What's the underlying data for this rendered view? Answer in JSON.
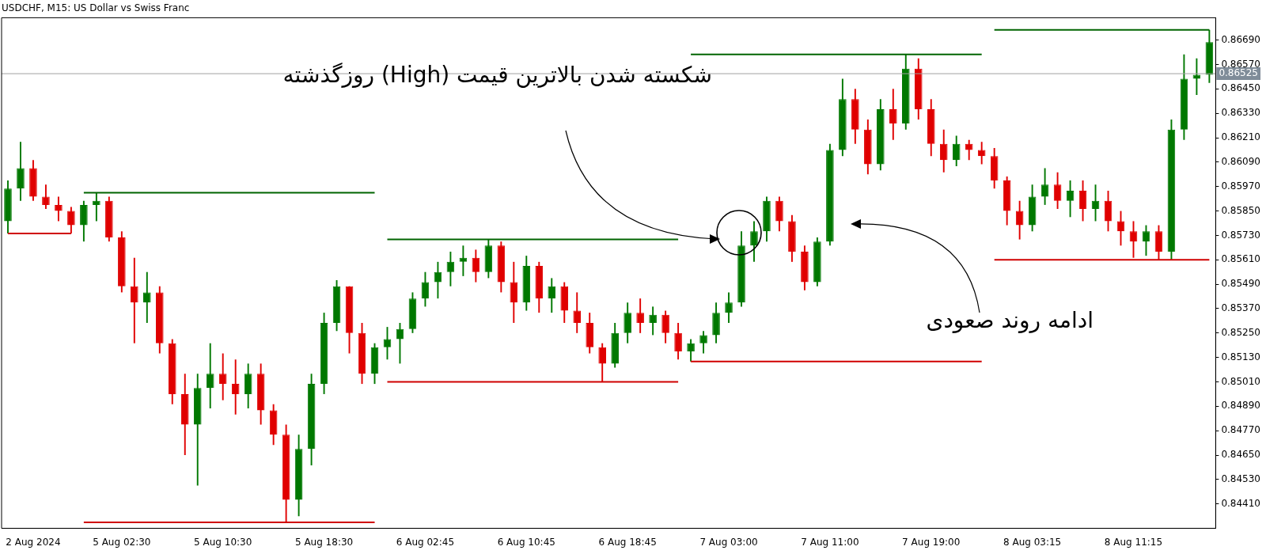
{
  "chart_data": {
    "type": "candlestick",
    "title": "USDCHF, M15: US Dollar vs Swiss Franc",
    "categories": [
      null,
      null,
      "2 Aug 2024",
      null,
      null,
      null,
      null,
      null,
      null,
      "5 Aug 02:30",
      null,
      null,
      null,
      null,
      null,
      null,
      null,
      "5 Aug 10:30",
      null,
      null,
      null,
      null,
      null,
      null,
      null,
      "5 Aug 18:30",
      null,
      null,
      null,
      null,
      null,
      null,
      null,
      "6 Aug 02:45",
      null,
      null,
      null,
      null,
      null,
      null,
      null,
      "6 Aug 10:45",
      null,
      null,
      null,
      null,
      null,
      null,
      null,
      "6 Aug 18:45",
      null,
      null,
      null,
      null,
      null,
      null,
      null,
      "7 Aug 03:00",
      null,
      null,
      null,
      null,
      null,
      null,
      null,
      "7 Aug 11:00",
      null,
      null,
      null,
      null,
      null,
      null,
      null,
      "7 Aug 19:00",
      null,
      null,
      null,
      null,
      null,
      null,
      null,
      "8 Aug 03:15",
      null,
      null,
      null,
      null,
      null,
      null,
      null,
      "8 Aug 11:15",
      null,
      null,
      null,
      null,
      null,
      null
    ],
    "series": [
      {
        "ohlc": [
          [
            0.858,
            0.86,
            0.8574,
            0.8596
          ],
          [
            0.8596,
            0.8619,
            0.859,
            0.8606
          ],
          [
            0.8606,
            0.861,
            0.859,
            0.8592
          ],
          [
            0.8592,
            0.8598,
            0.8586,
            0.8588
          ],
          [
            0.8588,
            0.8592,
            0.858,
            0.8585
          ],
          [
            0.8585,
            0.8587,
            0.8574,
            0.8578
          ],
          [
            0.8578,
            0.859,
            0.857,
            0.8588
          ],
          [
            0.8588,
            0.8594,
            0.858,
            0.859
          ],
          [
            0.859,
            0.8592,
            0.857,
            0.8572
          ],
          [
            0.8572,
            0.8575,
            0.8545,
            0.8548
          ],
          [
            0.8548,
            0.8562,
            0.852,
            0.854
          ],
          [
            0.854,
            0.8555,
            0.853,
            0.8545
          ],
          [
            0.8545,
            0.8548,
            0.8515,
            0.852
          ],
          [
            0.852,
            0.8522,
            0.849,
            0.8495
          ],
          [
            0.8495,
            0.8505,
            0.8465,
            0.848
          ],
          [
            0.848,
            0.8505,
            0.845,
            0.8498
          ],
          [
            0.8498,
            0.852,
            0.8488,
            0.8505
          ],
          [
            0.8505,
            0.8515,
            0.8492,
            0.85
          ],
          [
            0.85,
            0.8512,
            0.8485,
            0.8495
          ],
          [
            0.8495,
            0.851,
            0.8488,
            0.8505
          ],
          [
            0.8505,
            0.851,
            0.848,
            0.8487
          ],
          [
            0.8487,
            0.849,
            0.847,
            0.8475
          ],
          [
            0.8475,
            0.848,
            0.8432,
            0.8443
          ],
          [
            0.8443,
            0.8475,
            0.8435,
            0.8468
          ],
          [
            0.8468,
            0.8505,
            0.846,
            0.85
          ],
          [
            0.85,
            0.8535,
            0.8495,
            0.853
          ],
          [
            0.853,
            0.8551,
            0.8526,
            0.8548
          ],
          [
            0.8548,
            0.8548,
            0.8515,
            0.8525
          ],
          [
            0.8525,
            0.853,
            0.85,
            0.8505
          ],
          [
            0.8505,
            0.852,
            0.85,
            0.8518
          ],
          [
            0.8518,
            0.8528,
            0.8512,
            0.8522
          ],
          [
            0.8522,
            0.853,
            0.851,
            0.8527
          ],
          [
            0.8527,
            0.8545,
            0.8525,
            0.8542
          ],
          [
            0.8542,
            0.8555,
            0.8538,
            0.855
          ],
          [
            0.855,
            0.856,
            0.8542,
            0.8555
          ],
          [
            0.8555,
            0.8565,
            0.8548,
            0.856
          ],
          [
            0.856,
            0.8568,
            0.8553,
            0.8562
          ],
          [
            0.8562,
            0.8566,
            0.855,
            0.8555
          ],
          [
            0.8555,
            0.8571,
            0.8552,
            0.8568
          ],
          [
            0.8568,
            0.857,
            0.8545,
            0.855
          ],
          [
            0.855,
            0.856,
            0.853,
            0.854
          ],
          [
            0.854,
            0.8563,
            0.8536,
            0.8558
          ],
          [
            0.8558,
            0.856,
            0.8535,
            0.8542
          ],
          [
            0.8542,
            0.8552,
            0.8535,
            0.8548
          ],
          [
            0.8548,
            0.855,
            0.853,
            0.8536
          ],
          [
            0.8536,
            0.8545,
            0.8525,
            0.853
          ],
          [
            0.853,
            0.8535,
            0.8515,
            0.8518
          ],
          [
            0.8518,
            0.852,
            0.8501,
            0.851
          ],
          [
            0.851,
            0.853,
            0.8508,
            0.8525
          ],
          [
            0.8525,
            0.854,
            0.852,
            0.8535
          ],
          [
            0.8535,
            0.8542,
            0.8525,
            0.853
          ],
          [
            0.853,
            0.8538,
            0.8524,
            0.8534
          ],
          [
            0.8534,
            0.8536,
            0.852,
            0.8525
          ],
          [
            0.8525,
            0.853,
            0.8512,
            0.8516
          ],
          [
            0.8516,
            0.8522,
            0.8511,
            0.852
          ],
          [
            0.852,
            0.8526,
            0.8515,
            0.8524
          ],
          [
            0.8524,
            0.854,
            0.852,
            0.8535
          ],
          [
            0.8535,
            0.8545,
            0.853,
            0.854
          ],
          [
            0.854,
            0.8575,
            0.8538,
            0.8568
          ],
          [
            0.8568,
            0.858,
            0.856,
            0.8575
          ],
          [
            0.8575,
            0.8592,
            0.857,
            0.859
          ],
          [
            0.859,
            0.8592,
            0.8575,
            0.858
          ],
          [
            0.858,
            0.8583,
            0.856,
            0.8565
          ],
          [
            0.8565,
            0.8568,
            0.8546,
            0.855
          ],
          [
            0.855,
            0.8572,
            0.8548,
            0.857
          ],
          [
            0.857,
            0.8618,
            0.8568,
            0.8615
          ],
          [
            0.8615,
            0.865,
            0.8612,
            0.864
          ],
          [
            0.864,
            0.8645,
            0.8618,
            0.8625
          ],
          [
            0.8625,
            0.863,
            0.8603,
            0.8608
          ],
          [
            0.8608,
            0.864,
            0.8605,
            0.8635
          ],
          [
            0.8635,
            0.8645,
            0.862,
            0.8628
          ],
          [
            0.8628,
            0.8662,
            0.8625,
            0.8655
          ],
          [
            0.8655,
            0.866,
            0.863,
            0.8635
          ],
          [
            0.8635,
            0.864,
            0.8612,
            0.8618
          ],
          [
            0.8618,
            0.8625,
            0.8604,
            0.861
          ],
          [
            0.861,
            0.8622,
            0.8607,
            0.8618
          ],
          [
            0.8618,
            0.862,
            0.861,
            0.8615
          ],
          [
            0.8615,
            0.8619,
            0.8608,
            0.8612
          ],
          [
            0.8612,
            0.8616,
            0.8596,
            0.86
          ],
          [
            0.86,
            0.8602,
            0.8578,
            0.8585
          ],
          [
            0.8585,
            0.859,
            0.8571,
            0.8578
          ],
          [
            0.8578,
            0.8598,
            0.8575,
            0.8592
          ],
          [
            0.8592,
            0.8606,
            0.8588,
            0.8598
          ],
          [
            0.8598,
            0.8604,
            0.8586,
            0.859
          ],
          [
            0.859,
            0.86,
            0.8582,
            0.8595
          ],
          [
            0.8595,
            0.86,
            0.858,
            0.8586
          ],
          [
            0.8586,
            0.8598,
            0.858,
            0.859
          ],
          [
            0.859,
            0.8595,
            0.8575,
            0.858
          ],
          [
            0.858,
            0.8585,
            0.8568,
            0.8575
          ],
          [
            0.8575,
            0.858,
            0.8562,
            0.857
          ],
          [
            0.857,
            0.8578,
            0.8563,
            0.8575
          ],
          [
            0.8575,
            0.8578,
            0.8561,
            0.8565
          ],
          [
            0.8565,
            0.863,
            0.8561,
            0.8625
          ],
          [
            0.8625,
            0.8662,
            0.862,
            0.865
          ],
          [
            0.865,
            0.866,
            0.8642,
            0.8652
          ],
          [
            0.8652,
            0.8674,
            0.8648,
            0.8668
          ]
        ],
        "colors": [
          "#007800",
          "#007800",
          "#e00000",
          "#e00000",
          "#e00000",
          "#e00000",
          "#007800",
          "#007800",
          "#e00000",
          "#e00000",
          "#e00000",
          "#007800",
          "#e00000",
          "#e00000",
          "#e00000",
          "#007800",
          "#007800",
          "#e00000",
          "#e00000",
          "#007800",
          "#e00000",
          "#e00000",
          "#e00000",
          "#007800",
          "#007800",
          "#007800",
          "#007800",
          "#e00000",
          "#e00000",
          "#007800",
          "#007800",
          "#007800",
          "#007800",
          "#007800",
          "#007800",
          "#007800",
          "#007800",
          "#e00000",
          "#007800",
          "#e00000",
          "#e00000",
          "#007800",
          "#e00000",
          "#007800",
          "#e00000",
          "#e00000",
          "#e00000",
          "#e00000",
          "#007800",
          "#007800",
          "#e00000",
          "#007800",
          "#e00000",
          "#e00000",
          "#007800",
          "#007800",
          "#007800",
          "#007800",
          "#007800",
          "#007800",
          "#007800",
          "#e00000",
          "#e00000",
          "#e00000",
          "#007800",
          "#007800",
          "#007800",
          "#e00000",
          "#e00000",
          "#007800",
          "#e00000",
          "#007800",
          "#e00000",
          "#e00000",
          "#e00000",
          "#007800",
          "#e00000",
          "#e00000",
          "#e00000",
          "#e00000",
          "#e00000",
          "#007800",
          "#007800",
          "#e00000",
          "#007800",
          "#e00000",
          "#007800",
          "#e00000",
          "#e00000",
          "#e00000",
          "#007800",
          "#e00000",
          "#007800",
          "#007800",
          "#007800",
          "#007800"
        ]
      },
      {
        "type": "line",
        "color": "#d00000",
        "values": [
          0.8574,
          0.8574,
          0.8574,
          0.8574,
          0.8574,
          0.8574,
          null,
          null,
          null,
          null,
          null,
          null,
          null,
          null,
          null,
          null,
          null,
          null,
          null,
          null,
          null,
          null,
          null,
          null,
          null,
          null,
          null,
          null,
          null,
          null,
          null,
          null,
          null,
          null,
          null,
          null,
          null,
          null,
          null,
          null,
          null,
          null,
          null,
          null,
          null,
          null,
          null,
          null,
          null,
          null,
          null,
          null,
          null,
          null,
          null,
          null,
          null,
          null,
          null,
          null,
          null,
          null,
          null,
          null,
          null,
          null,
          null,
          null,
          null,
          null,
          null,
          null,
          null,
          null,
          null,
          null,
          null,
          null,
          null,
          null,
          null,
          null,
          null,
          null,
          null,
          null,
          null,
          null,
          null,
          null,
          null,
          null,
          null,
          null,
          null,
          null
        ]
      },
      {
        "type": "line",
        "color": "#006400",
        "values": [
          null,
          null,
          null,
          null,
          null,
          null,
          0.8594,
          0.8594,
          0.8594,
          0.8594,
          0.8594,
          0.8594,
          0.8594,
          0.8594,
          0.8594,
          0.8594,
          0.8594,
          0.8594,
          0.8594,
          0.8594,
          0.8594,
          0.8594,
          0.8594,
          0.8594,
          0.8594,
          0.8594,
          0.8594,
          0.8594,
          0.8594,
          0.8594,
          null,
          null,
          null,
          null,
          null,
          null,
          null,
          null,
          null,
          null,
          null,
          null,
          null,
          null,
          null,
          null,
          null,
          null,
          null,
          null,
          null,
          null,
          null,
          null,
          null,
          null,
          null,
          null,
          null,
          null,
          null,
          null,
          null,
          null,
          null,
          null,
          null,
          null,
          null,
          null,
          null,
          null,
          null,
          null,
          null,
          null,
          null,
          null,
          null,
          null,
          null,
          null,
          null,
          null,
          null,
          null,
          null,
          null,
          null,
          null,
          null,
          null,
          null,
          null,
          null,
          null
        ]
      },
      {
        "type": "line",
        "color": "#d00000",
        "values": [
          null,
          null,
          null,
          null,
          null,
          null,
          0.8432,
          0.8432,
          0.8432,
          0.8432,
          0.8432,
          0.8432,
          0.8432,
          0.8432,
          0.8432,
          0.8432,
          0.8432,
          0.8432,
          0.8432,
          0.8432,
          0.8432,
          0.8432,
          0.8432,
          0.8432,
          0.8432,
          0.8432,
          0.8432,
          0.8432,
          0.8432,
          0.8432,
          null,
          null,
          null,
          null,
          null,
          null,
          null,
          null,
          null,
          null,
          null,
          null,
          null,
          null,
          null,
          null,
          null,
          null,
          null,
          null,
          null,
          null,
          null,
          null,
          null,
          null,
          null,
          null,
          null,
          null,
          null,
          null,
          null,
          null,
          null,
          null,
          null,
          null,
          null,
          null,
          null,
          null,
          null,
          null,
          null,
          null,
          null,
          null,
          null,
          null,
          null,
          null,
          null,
          null,
          null,
          null,
          null,
          null,
          null,
          null,
          null,
          null,
          null,
          null,
          null,
          null
        ]
      },
      {
        "type": "line",
        "color": "#006400",
        "values": [
          null,
          null,
          null,
          null,
          null,
          null,
          null,
          null,
          null,
          null,
          null,
          null,
          null,
          null,
          null,
          null,
          null,
          null,
          null,
          null,
          null,
          null,
          null,
          null,
          null,
          null,
          null,
          null,
          null,
          null,
          0.8571,
          0.8571,
          0.8571,
          0.8571,
          0.8571,
          0.8571,
          0.8571,
          0.8571,
          0.8571,
          0.8571,
          0.8571,
          0.8571,
          0.8571,
          0.8571,
          0.8571,
          0.8571,
          0.8571,
          0.8571,
          0.8571,
          0.8571,
          0.8571,
          0.8571,
          0.8571,
          0.8571,
          null,
          null,
          null,
          null,
          null,
          null,
          null,
          null,
          null,
          null,
          null,
          null,
          null,
          null,
          null,
          null,
          null,
          null,
          null,
          null,
          null,
          null,
          null,
          null,
          null,
          null,
          null,
          null,
          null,
          null,
          null,
          null,
          null,
          null,
          null,
          null,
          null,
          null,
          null,
          null,
          null,
          null
        ]
      },
      {
        "type": "line",
        "color": "#d00000",
        "values": [
          null,
          null,
          null,
          null,
          null,
          null,
          null,
          null,
          null,
          null,
          null,
          null,
          null,
          null,
          null,
          null,
          null,
          null,
          null,
          null,
          null,
          null,
          null,
          null,
          null,
          null,
          null,
          null,
          null,
          null,
          0.8501,
          0.8501,
          0.8501,
          0.8501,
          0.8501,
          0.8501,
          0.8501,
          0.8501,
          0.8501,
          0.8501,
          0.8501,
          0.8501,
          0.8501,
          0.8501,
          0.8501,
          0.8501,
          0.8501,
          0.8501,
          0.8501,
          0.8501,
          0.8501,
          0.8501,
          0.8501,
          0.8501,
          null,
          null,
          null,
          null,
          null,
          null,
          null,
          null,
          null,
          null,
          null,
          null,
          null,
          null,
          null,
          null,
          null,
          null,
          null,
          null,
          null,
          null,
          null,
          null,
          null,
          null,
          null,
          null,
          null,
          null,
          null,
          null,
          null,
          null,
          null,
          null,
          null,
          null,
          null,
          null,
          null,
          null
        ]
      },
      {
        "type": "line",
        "color": "#006400",
        "values": [
          null,
          null,
          null,
          null,
          null,
          null,
          null,
          null,
          null,
          null,
          null,
          null,
          null,
          null,
          null,
          null,
          null,
          null,
          null,
          null,
          null,
          null,
          null,
          null,
          null,
          null,
          null,
          null,
          null,
          null,
          null,
          null,
          null,
          null,
          null,
          null,
          null,
          null,
          null,
          null,
          null,
          null,
          null,
          null,
          null,
          null,
          null,
          null,
          null,
          null,
          null,
          null,
          null,
          null,
          0.8662,
          0.8662,
          0.8662,
          0.8662,
          0.8662,
          0.8662,
          0.8662,
          0.8662,
          0.8662,
          0.8662,
          0.8662,
          0.8662,
          0.8662,
          0.8662,
          0.8662,
          0.8662,
          0.8662,
          0.8662,
          0.8662,
          0.8662,
          0.8662,
          0.8662,
          0.8662,
          0.8662,
          null,
          null,
          null,
          null,
          null,
          null,
          null,
          null,
          null,
          null,
          null,
          null,
          null,
          null,
          null,
          null,
          null,
          null
        ]
      },
      {
        "type": "line",
        "color": "#d00000",
        "values": [
          null,
          null,
          null,
          null,
          null,
          null,
          null,
          null,
          null,
          null,
          null,
          null,
          null,
          null,
          null,
          null,
          null,
          null,
          null,
          null,
          null,
          null,
          null,
          null,
          null,
          null,
          null,
          null,
          null,
          null,
          null,
          null,
          null,
          null,
          null,
          null,
          null,
          null,
          null,
          null,
          null,
          null,
          null,
          null,
          null,
          null,
          null,
          null,
          null,
          null,
          null,
          null,
          null,
          null,
          0.8511,
          0.8511,
          0.8511,
          0.8511,
          0.8511,
          0.8511,
          0.8511,
          0.8511,
          0.8511,
          0.8511,
          0.8511,
          0.8511,
          0.8511,
          0.8511,
          0.8511,
          0.8511,
          0.8511,
          0.8511,
          0.8511,
          0.8511,
          0.8511,
          0.8511,
          0.8511,
          0.8511,
          null,
          null,
          null,
          null,
          null,
          null,
          null,
          null,
          null,
          null,
          null,
          null,
          null,
          null,
          null,
          null,
          null,
          null
        ]
      },
      {
        "type": "line",
        "color": "#006400",
        "values": [
          null,
          null,
          null,
          null,
          null,
          null,
          null,
          null,
          null,
          null,
          null,
          null,
          null,
          null,
          null,
          null,
          null,
          null,
          null,
          null,
          null,
          null,
          null,
          null,
          null,
          null,
          null,
          null,
          null,
          null,
          null,
          null,
          null,
          null,
          null,
          null,
          null,
          null,
          null,
          null,
          null,
          null,
          null,
          null,
          null,
          null,
          null,
          null,
          null,
          null,
          null,
          null,
          null,
          null,
          null,
          null,
          null,
          null,
          null,
          null,
          null,
          null,
          null,
          null,
          null,
          null,
          null,
          null,
          null,
          null,
          null,
          null,
          null,
          null,
          null,
          null,
          null,
          null,
          0.8674,
          0.8674,
          0.8674,
          0.8674,
          0.8674,
          0.8674,
          0.8674,
          0.8674,
          0.8674,
          0.8674,
          0.8674,
          0.8674,
          0.8674,
          0.8674,
          0.8674,
          0.8674,
          0.8674,
          0.8674
        ]
      },
      {
        "type": "line",
        "color": "#d00000",
        "values": [
          null,
          null,
          null,
          null,
          null,
          null,
          null,
          null,
          null,
          null,
          null,
          null,
          null,
          null,
          null,
          null,
          null,
          null,
          null,
          null,
          null,
          null,
          null,
          null,
          null,
          null,
          null,
          null,
          null,
          null,
          null,
          null,
          null,
          null,
          null,
          null,
          null,
          null,
          null,
          null,
          null,
          null,
          null,
          null,
          null,
          null,
          null,
          null,
          null,
          null,
          null,
          null,
          null,
          null,
          null,
          null,
          null,
          null,
          null,
          null,
          null,
          null,
          null,
          null,
          null,
          null,
          null,
          null,
          null,
          null,
          null,
          null,
          null,
          null,
          null,
          null,
          null,
          null,
          0.8561,
          0.8561,
          0.8561,
          0.8561,
          0.8561,
          0.8561,
          0.8561,
          0.8561,
          0.8561,
          0.8561,
          0.8561,
          0.8561,
          0.8561,
          0.8561,
          0.8561,
          0.8561,
          0.8561,
          0.8561
        ]
      }
    ],
    "ylim": [
      0.8429,
      0.868
    ],
    "yticks": [
      {
        "value": 0.8669,
        "label": "0.86690"
      },
      {
        "value": 0.8657,
        "label": "0.86570"
      },
      {
        "value": 0.8645,
        "label": "0.86450"
      },
      {
        "value": 0.8633,
        "label": "0.86330"
      },
      {
        "value": 0.8621,
        "label": "0.86210"
      },
      {
        "value": 0.8609,
        "label": "0.86090"
      },
      {
        "value": 0.8597,
        "label": "0.85970"
      },
      {
        "value": 0.8585,
        "label": "0.85850"
      },
      {
        "value": 0.8573,
        "label": "0.85730"
      },
      {
        "value": 0.8561,
        "label": "0.85610"
      },
      {
        "value": 0.8549,
        "label": "0.85490"
      },
      {
        "value": 0.8537,
        "label": "0.85370"
      },
      {
        "value": 0.8525,
        "label": "0.85250"
      },
      {
        "value": 0.8513,
        "label": "0.85130"
      },
      {
        "value": 0.8501,
        "label": "0.85010"
      },
      {
        "value": 0.8489,
        "label": "0.84890"
      },
      {
        "value": 0.8477,
        "label": "0.84770"
      },
      {
        "value": 0.8465,
        "label": "0.84650"
      },
      {
        "value": 0.8453,
        "label": "0.84530"
      },
      {
        "value": 0.8441,
        "label": "0.84410"
      }
    ],
    "ref_lines": [
      {
        "axis": "y",
        "value": 0.86525,
        "label": "0.86525",
        "color": "#a0a0a0"
      }
    ],
    "annotations": [
      "شکسته شدن بالاترین قیمت (High) روزگذشته",
      "ادامه روند صعودی"
    ]
  }
}
